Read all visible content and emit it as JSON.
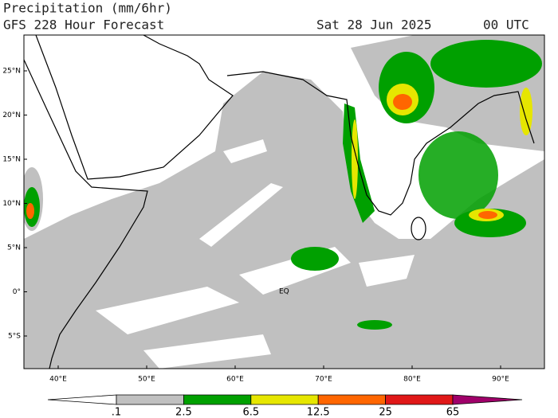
{
  "header": {
    "title": "Precipitation (mm/6hr)",
    "subtitle": "GFS 228 Hour Forecast",
    "date": "Sat 28 Jun 2025",
    "time": "00 UTC"
  },
  "map": {
    "lat_labels": [
      "25°N",
      "20°N",
      "15°N",
      "10°N",
      "5°N",
      "0°",
      "5°S"
    ],
    "lon_labels": [
      "40°E",
      "50°E",
      "60°E",
      "70°E",
      "80°E",
      "90°E"
    ],
    "annotation": "EQ"
  },
  "colorbar": {
    "labels": [
      ".1",
      "2.5",
      "6.5",
      "12.5",
      "25",
      "65"
    ],
    "colors": [
      "#ffffff",
      "#c0c0c0",
      "#00a000",
      "#e6e600",
      "#ff6600",
      "#e01818",
      "#a0006a"
    ]
  }
}
